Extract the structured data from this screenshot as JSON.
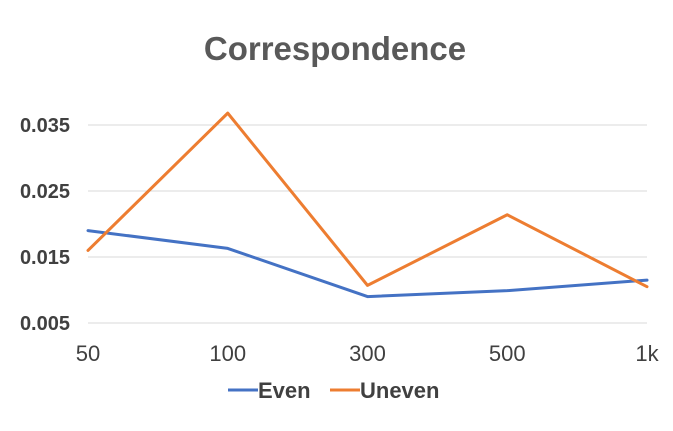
{
  "chart_data": {
    "type": "line",
    "title": "Correspondence",
    "categories": [
      "50",
      "100",
      "300",
      "500",
      "1k"
    ],
    "yticks": [
      "0.005",
      "0.015",
      "0.025",
      "0.035"
    ],
    "ylim": [
      0.005,
      0.04
    ],
    "grid": true,
    "legend_position": "bottom",
    "series": [
      {
        "name": "Even",
        "color": "#4472C4",
        "values": [
          0.019,
          0.0163,
          0.009,
          0.0099,
          0.0115
        ]
      },
      {
        "name": "Uneven",
        "color": "#ED7D31",
        "values": [
          0.016,
          0.0368,
          0.0107,
          0.0214,
          0.0105
        ]
      }
    ]
  }
}
